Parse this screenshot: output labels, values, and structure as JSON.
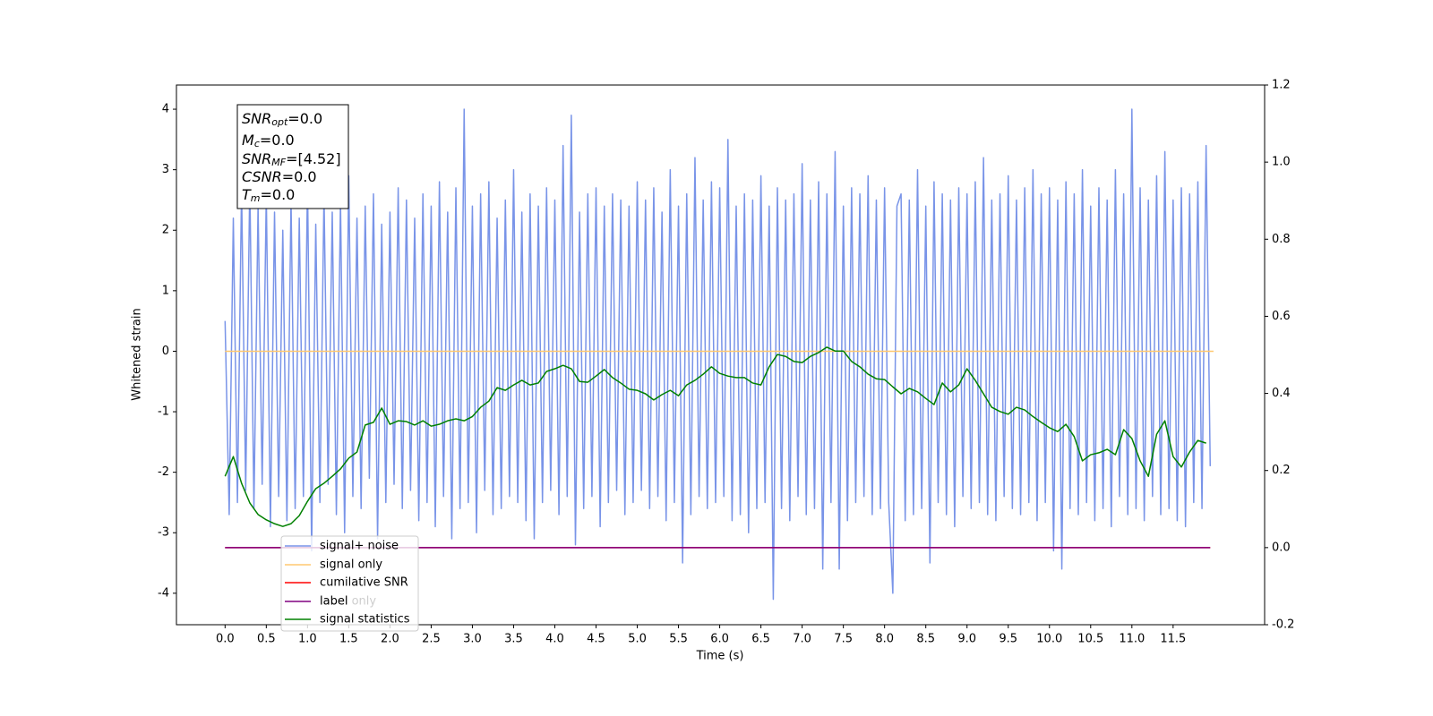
{
  "chart_data": {
    "type": "line",
    "xlabel": "Time (s)",
    "ylabel": "Whitened strain",
    "xlim": [
      -0.59,
      12.61
    ],
    "ylim": [
      -4.52,
      4.4
    ],
    "y2lim": [
      -0.2,
      1.2
    ],
    "xticks": [
      {
        "value": 0,
        "label": "0.0"
      },
      0.5,
      {
        "value": 1,
        "label": "1.0"
      },
      1.5,
      {
        "value": 2,
        "label": "2.0"
      },
      2.5,
      {
        "value": 3,
        "label": "3.0"
      },
      3.5,
      {
        "value": 4,
        "label": "4.0"
      },
      4.5,
      {
        "value": 5,
        "label": "5.0"
      },
      5.5,
      {
        "value": 6,
        "label": "6.0"
      },
      6.5,
      {
        "value": 7,
        "label": "7.0"
      },
      7.5,
      {
        "value": 8,
        "label": "8.0"
      },
      8.5,
      {
        "value": 9,
        "label": "9.0"
      },
      9.5,
      {
        "value": 10,
        "label": "10.0"
      },
      10.5,
      {
        "value": 11,
        "label": "11.0"
      },
      11.5
    ],
    "yticks": [
      -4,
      -3,
      -2,
      -1,
      0,
      1,
      2,
      3,
      4
    ],
    "y2ticks": [
      -0.2,
      {
        "value": 0,
        "label": "0.0"
      },
      0.2,
      0.4,
      0.6,
      0.8,
      {
        "value": 1,
        "label": "1.0"
      },
      1.2
    ],
    "grid": false,
    "legend": "lower left",
    "legend_hidden": [
      "label only"
    ],
    "annotation": [
      {
        "base": "SNR",
        "sub": "opt",
        "rest": "=0.0"
      },
      {
        "base": "M",
        "sub": "c",
        "rest": "=0.0"
      },
      {
        "base": "SNR",
        "sub": "MF",
        "rest": "=[4.52]"
      },
      {
        "base": "CSNR",
        "sub": "",
        "rest": "=0.0"
      },
      {
        "base": "T",
        "sub": "m",
        "rest": "=0.0"
      }
    ],
    "series": [
      {
        "name": "signal+ noise",
        "color": "#7994e8",
        "axis": "y",
        "x": [
          0,
          0.05,
          0.1,
          0.15,
          0.2,
          0.25,
          0.3,
          0.35,
          0.4,
          0.45,
          0.5,
          0.55,
          0.6,
          0.65,
          0.7,
          0.75,
          0.8,
          0.85,
          0.9,
          0.95,
          1,
          1.05,
          1.1,
          1.15,
          1.2,
          1.25,
          1.3,
          1.35,
          1.4,
          1.45,
          1.5,
          1.55,
          1.6,
          1.65,
          1.7,
          1.75,
          1.8,
          1.85,
          1.9,
          1.95,
          2,
          2.05,
          2.1,
          2.15,
          2.2,
          2.25,
          2.3,
          2.35,
          2.4,
          2.45,
          2.5,
          2.55,
          2.6,
          2.65,
          2.7,
          2.75,
          2.8,
          2.85,
          2.9,
          2.95,
          3,
          3.05,
          3.1,
          3.15,
          3.2,
          3.25,
          3.3,
          3.35,
          3.4,
          3.45,
          3.5,
          3.55,
          3.6,
          3.65,
          3.7,
          3.75,
          3.8,
          3.85,
          3.9,
          3.95,
          4,
          4.05,
          4.1,
          4.15,
          4.2,
          4.25,
          4.3,
          4.35,
          4.4,
          4.45,
          4.5,
          4.55,
          4.6,
          4.65,
          4.7,
          4.75,
          4.8,
          4.85,
          4.9,
          4.95,
          5,
          5.05,
          5.1,
          5.15,
          5.2,
          5.25,
          5.3,
          5.35,
          5.4,
          5.45,
          5.5,
          5.55,
          5.6,
          5.65,
          5.7,
          5.75,
          5.8,
          5.85,
          5.9,
          5.95,
          6,
          6.05,
          6.1,
          6.15,
          6.2,
          6.25,
          6.3,
          6.35,
          6.4,
          6.45,
          6.5,
          6.55,
          6.6,
          6.65,
          6.7,
          6.75,
          6.8,
          6.85,
          6.9,
          6.95,
          7,
          7.05,
          7.1,
          7.15,
          7.2,
          7.25,
          7.3,
          7.35,
          7.4,
          7.45,
          7.5,
          7.55,
          7.6,
          7.65,
          7.7,
          7.75,
          7.8,
          7.85,
          7.9,
          7.95,
          8,
          8.05,
          8.1,
          8.15,
          8.2,
          8.25,
          8.3,
          8.35,
          8.4,
          8.45,
          8.5,
          8.55,
          8.6,
          8.65,
          8.7,
          8.75,
          8.8,
          8.85,
          8.9,
          8.95,
          9,
          9.05,
          9.1,
          9.15,
          9.2,
          9.25,
          9.3,
          9.35,
          9.4,
          9.45,
          9.5,
          9.55,
          9.6,
          9.65,
          9.7,
          9.75,
          9.8,
          9.85,
          9.9,
          9.95,
          10,
          10.05,
          10.1,
          10.15,
          10.2,
          10.25,
          10.3,
          10.35,
          10.4,
          10.45,
          10.5,
          10.55,
          10.6,
          10.65,
          10.7,
          10.75,
          10.8,
          10.85,
          10.9,
          10.95,
          11,
          11.05,
          11.1,
          11.15,
          11.2,
          11.25,
          11.3,
          11.35,
          11.4,
          11.45,
          11.5,
          11.55,
          11.6,
          11.65,
          11.7,
          11.75,
          11.8,
          11.85,
          11.9,
          11.95
        ],
        "values": [
          0.5,
          -2.7,
          2.2,
          -2.5,
          2.7,
          -2.3,
          2.8,
          -2.6,
          2.4,
          -2.2,
          2.6,
          -2.9,
          2.3,
          -2.4,
          2.0,
          -2.8,
          2.5,
          -2.6,
          2.2,
          -2.4,
          2.8,
          -3.3,
          2.1,
          -2.5,
          2.6,
          -2.2,
          2.3,
          -2.7,
          2.5,
          -3.0,
          2.9,
          -2.4,
          2.2,
          -2.6,
          2.4,
          -2.1,
          2.6,
          -3.1,
          2.1,
          -2.5,
          2.3,
          -2.2,
          2.7,
          -2.6,
          2.5,
          -2.3,
          2.2,
          -2.8,
          2.6,
          -2.5,
          2.4,
          -2.9,
          2.8,
          -2.4,
          2.3,
          -3.1,
          2.7,
          -2.6,
          4.0,
          -2.5,
          2.4,
          -3.0,
          2.6,
          -2.3,
          2.8,
          -2.7,
          2.2,
          -2.6,
          2.5,
          -2.4,
          3.0,
          -2.5,
          2.3,
          -2.8,
          2.6,
          -3.1,
          2.4,
          -2.5,
          2.7,
          -2.3,
          2.5,
          -2.7,
          3.4,
          -2.4,
          3.9,
          -3.2,
          2.3,
          -2.6,
          2.6,
          -2.4,
          2.7,
          -2.9,
          2.4,
          -2.5,
          2.6,
          -2.3,
          2.5,
          -2.7,
          2.4,
          -2.5,
          2.8,
          -2.3,
          2.5,
          -2.6,
          2.7,
          -2.4,
          2.3,
          -2.8,
          3.0,
          -2.5,
          2.4,
          -3.5,
          2.6,
          -2.7,
          3.2,
          -2.4,
          2.5,
          -2.6,
          2.8,
          -2.5,
          2.7,
          -2.4,
          3.5,
          -2.8,
          2.4,
          -2.7,
          2.6,
          -3.0,
          2.5,
          -2.6,
          2.9,
          -2.5,
          2.4,
          -4.1,
          2.7,
          -2.6,
          2.5,
          -2.8,
          2.6,
          -2.4,
          3.1,
          -2.7,
          2.5,
          -2.6,
          2.8,
          -3.6,
          2.6,
          -2.5,
          3.3,
          -3.6,
          2.4,
          -2.8,
          2.7,
          -2.5,
          2.6,
          -2.4,
          2.9,
          -2.7,
          2.5,
          -2.6,
          2.7,
          -2.5,
          -4.0,
          2.4,
          2.6,
          -2.8,
          2.5,
          -2.7,
          3.0,
          -2.6,
          2.4,
          -3.5,
          2.8,
          -2.5,
          2.6,
          -2.7,
          2.5,
          -2.9,
          2.7,
          -2.4,
          2.6,
          -2.6,
          2.8,
          -2.5,
          3.2,
          -2.7,
          2.5,
          -2.8,
          2.6,
          -2.4,
          2.9,
          -2.6,
          2.5,
          -2.7,
          2.7,
          -2.5,
          3.0,
          -2.8,
          2.6,
          -2.5,
          2.7,
          -3.3,
          2.5,
          -3.6,
          2.8,
          -2.6,
          2.6,
          -2.7,
          3.0,
          -2.5,
          2.4,
          -2.8,
          2.7,
          -2.6,
          2.5,
          -2.9,
          3.0,
          -2.4,
          2.6,
          -2.7,
          4.0,
          -2.6,
          2.7,
          -2.8,
          2.5,
          -2.4,
          2.9,
          -2.7,
          3.3,
          -2.6,
          2.5,
          -2.8,
          2.7,
          -2.9,
          2.6,
          -2.5,
          2.8,
          -2.6,
          3.4,
          -1.9
        ]
      },
      {
        "name": "signal only",
        "color": "#ffc870",
        "axis": "y",
        "x": [
          0,
          11.99
        ],
        "values": [
          0,
          0
        ]
      },
      {
        "name": "cumilative SNR",
        "color": "#ff0000",
        "axis": "y2",
        "x": [
          0,
          11.95
        ],
        "values": [
          0,
          0
        ]
      },
      {
        "name": "label",
        "color": "#800080",
        "axis": "y2",
        "x": [
          0,
          11.95
        ],
        "values": [
          0,
          0
        ]
      },
      {
        "name": "signal statistics",
        "color": "#008000",
        "axis": "y2",
        "x": [
          0,
          0.1,
          0.2,
          0.3,
          0.4,
          0.5,
          0.6,
          0.7,
          0.8,
          0.9,
          1,
          1.1,
          1.2,
          1.3,
          1.4,
          1.5,
          1.6,
          1.7,
          1.8,
          1.9,
          2,
          2.1,
          2.2,
          2.3,
          2.4,
          2.5,
          2.6,
          2.7,
          2.8,
          2.9,
          3,
          3.1,
          3.2,
          3.3,
          3.4,
          3.5,
          3.6,
          3.7,
          3.8,
          3.9,
          4,
          4.1,
          4.2,
          4.3,
          4.4,
          4.5,
          4.6,
          4.7,
          4.8,
          4.9,
          5,
          5.1,
          5.2,
          5.3,
          5.4,
          5.5,
          5.6,
          5.7,
          5.8,
          5.9,
          6,
          6.1,
          6.2,
          6.3,
          6.4,
          6.5,
          6.6,
          6.7,
          6.8,
          6.9,
          7,
          7.1,
          7.2,
          7.3,
          7.4,
          7.5,
          7.6,
          7.7,
          7.8,
          7.9,
          8,
          8.1,
          8.2,
          8.3,
          8.4,
          8.5,
          8.6,
          8.7,
          8.8,
          8.9,
          9,
          9.1,
          9.2,
          9.3,
          9.4,
          9.5,
          9.6,
          9.7,
          9.8,
          9.9,
          10,
          10.1,
          10.2,
          10.3,
          10.4,
          10.5,
          10.6,
          10.7,
          10.8,
          10.9,
          11,
          11.1,
          11.2,
          11.3,
          11.4,
          11.5,
          11.6,
          11.7,
          11.8,
          11.9
        ],
        "values": [
          0.185,
          0.236,
          0.167,
          0.116,
          0.086,
          0.072,
          0.062,
          0.055,
          0.062,
          0.083,
          0.12,
          0.153,
          0.167,
          0.185,
          0.204,
          0.232,
          0.248,
          0.318,
          0.325,
          0.362,
          0.32,
          0.329,
          0.327,
          0.318,
          0.329,
          0.315,
          0.32,
          0.329,
          0.334,
          0.329,
          0.34,
          0.364,
          0.38,
          0.415,
          0.408,
          0.422,
          0.434,
          0.422,
          0.427,
          0.457,
          0.464,
          0.473,
          0.464,
          0.431,
          0.429,
          0.445,
          0.462,
          0.441,
          0.427,
          0.411,
          0.408,
          0.399,
          0.383,
          0.397,
          0.408,
          0.394,
          0.422,
          0.434,
          0.45,
          0.469,
          0.452,
          0.445,
          0.441,
          0.441,
          0.427,
          0.422,
          0.469,
          0.501,
          0.496,
          0.483,
          0.48,
          0.496,
          0.506,
          0.52,
          0.51,
          0.51,
          0.483,
          0.469,
          0.45,
          0.438,
          0.436,
          0.417,
          0.399,
          0.413,
          0.404,
          0.387,
          0.371,
          0.427,
          0.404,
          0.422,
          0.464,
          0.434,
          0.399,
          0.364,
          0.353,
          0.346,
          0.364,
          0.357,
          0.34,
          0.325,
          0.311,
          0.301,
          0.32,
          0.288,
          0.225,
          0.241,
          0.246,
          0.255,
          0.241,
          0.306,
          0.283,
          0.225,
          0.185,
          0.294,
          0.329,
          0.236,
          0.209,
          0.248,
          0.278,
          0.271
        ]
      }
    ]
  }
}
